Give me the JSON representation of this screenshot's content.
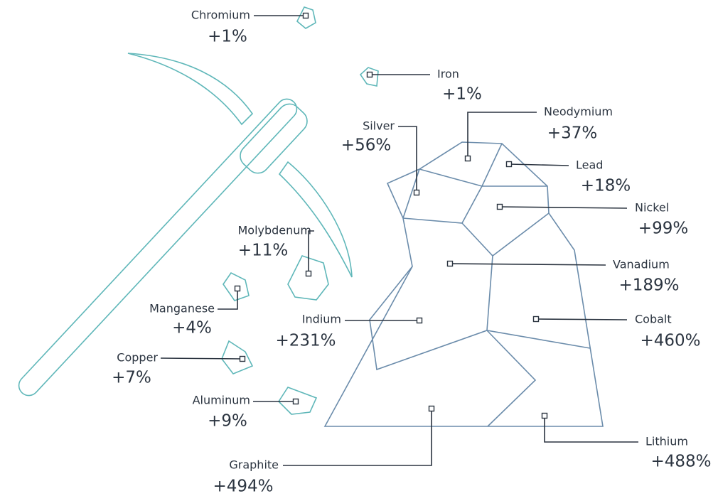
{
  "minerals": [
    {
      "name": "Chromium",
      "change": "+1%"
    },
    {
      "name": "Iron",
      "change": "+1%"
    },
    {
      "name": "Silver",
      "change": "+56%"
    },
    {
      "name": "Neodymium",
      "change": "+37%"
    },
    {
      "name": "Lead",
      "change": "+18%"
    },
    {
      "name": "Nickel",
      "change": "+99%"
    },
    {
      "name": "Molybdenum",
      "change": "+11%"
    },
    {
      "name": "Vanadium",
      "change": "+189%"
    },
    {
      "name": "Manganese",
      "change": "+4%"
    },
    {
      "name": "Indium",
      "change": "+231%"
    },
    {
      "name": "Cobalt",
      "change": "+460%"
    },
    {
      "name": "Copper",
      "change": "+7%"
    },
    {
      "name": "Aluminum",
      "change": "+9%"
    },
    {
      "name": "Graphite",
      "change": "+494%"
    },
    {
      "name": "Lithium",
      "change": "+488%"
    }
  ]
}
